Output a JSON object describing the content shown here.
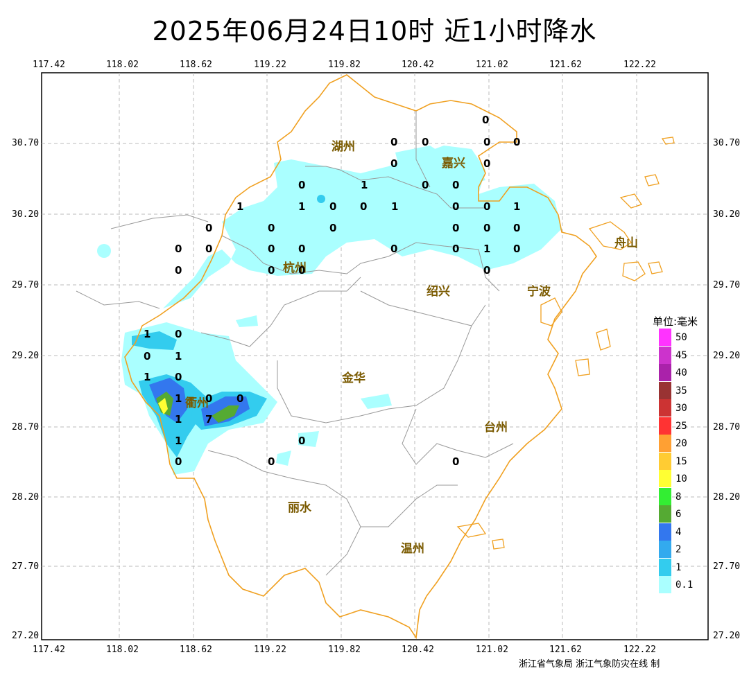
{
  "title": "2025年06月24日10时  近1小时降水",
  "lon_labels": [
    "117.42",
    "118.02",
    "118.62",
    "119.22",
    "119.82",
    "120.42",
    "121.02",
    "121.62",
    "122.22"
  ],
  "lat_labels": [
    "30.70",
    "30.20",
    "29.70",
    "29.20",
    "28.70",
    "28.20",
    "27.70",
    "27.20"
  ],
  "cities": [
    "湖州",
    "嘉兴",
    "杭州",
    "绍兴",
    "宁波",
    "衢州",
    "金华",
    "台州",
    "丽水",
    "温州",
    "舟山"
  ],
  "values": [
    "0",
    "0",
    "0",
    "0",
    "0",
    "0",
    "0",
    "0",
    "1",
    "0",
    "0",
    "1",
    "1",
    "0",
    "0",
    "1",
    "0",
    "0",
    "1",
    "0",
    "0",
    "0",
    "0",
    "0",
    "0",
    "0",
    "0",
    "0",
    "0",
    "0",
    "1",
    "0",
    "0",
    "0",
    "0",
    "0",
    "0",
    "1",
    "0",
    "1",
    "0",
    "1",
    "0",
    "0",
    "1",
    "0",
    "1",
    "7",
    "1",
    "3",
    "0",
    "0",
    "0",
    "0"
  ],
  "legend": {
    "title": "单位:毫米",
    "items": [
      {
        "label": "50",
        "color": "#ff33ff"
      },
      {
        "label": "45",
        "color": "#cc33cc"
      },
      {
        "label": "40",
        "color": "#aa22aa"
      },
      {
        "label": "35",
        "color": "#993333"
      },
      {
        "label": "30",
        "color": "#cc3333"
      },
      {
        "label": "25",
        "color": "#ff3333"
      },
      {
        "label": "20",
        "color": "#ffa033"
      },
      {
        "label": "15",
        "color": "#ffcc33"
      },
      {
        "label": "10",
        "color": "#ffff33"
      },
      {
        "label": "8",
        "color": "#33ee33"
      },
      {
        "label": "6",
        "color": "#55aa33"
      },
      {
        "label": "4",
        "color": "#3377ee"
      },
      {
        "label": "2",
        "color": "#33aaee"
      },
      {
        "label": "1",
        "color": "#33ccee"
      },
      {
        "label": "0.1",
        "color": "#aaffff"
      }
    ]
  },
  "footer": "浙江省气象局  浙江气象防灾在线 制"
}
